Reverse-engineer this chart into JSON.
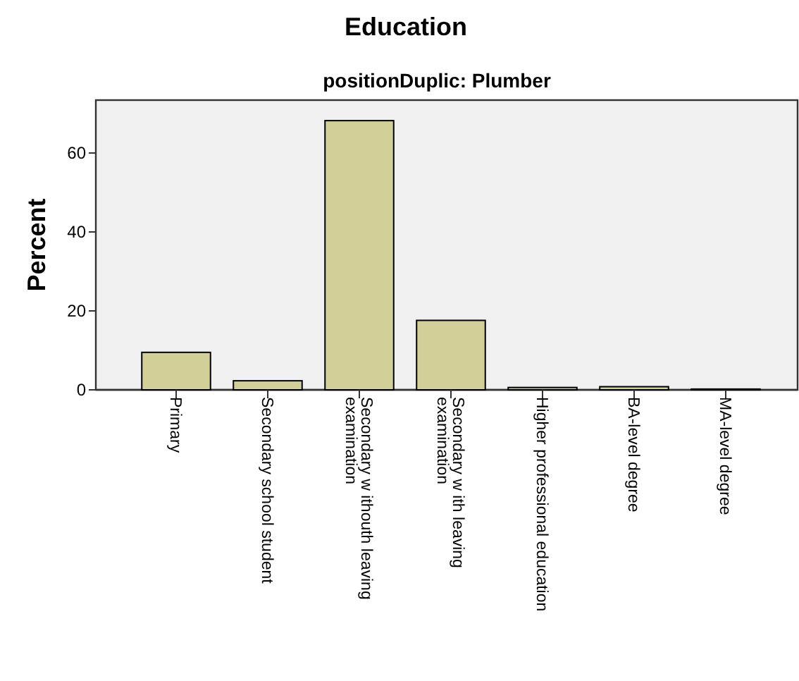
{
  "chart_data": {
    "type": "bar",
    "title": "Education",
    "subtitle": "positionDuplic: Plumber",
    "ylabel": "Percent",
    "categories": [
      "Primary",
      "Secondary school student",
      "Secondary w ithouth leaving examination",
      "Secondary w ith leaving examination",
      "Higher professional education",
      "BA-level degree",
      "MA-level degree"
    ],
    "values": [
      9.5,
      2.3,
      68.2,
      17.6,
      0.6,
      0.8,
      0.2
    ],
    "color": "#d3cf98",
    "ylim": [
      0,
      73.4
    ],
    "yticks": [
      0,
      20,
      40,
      60
    ],
    "grid": false
  }
}
